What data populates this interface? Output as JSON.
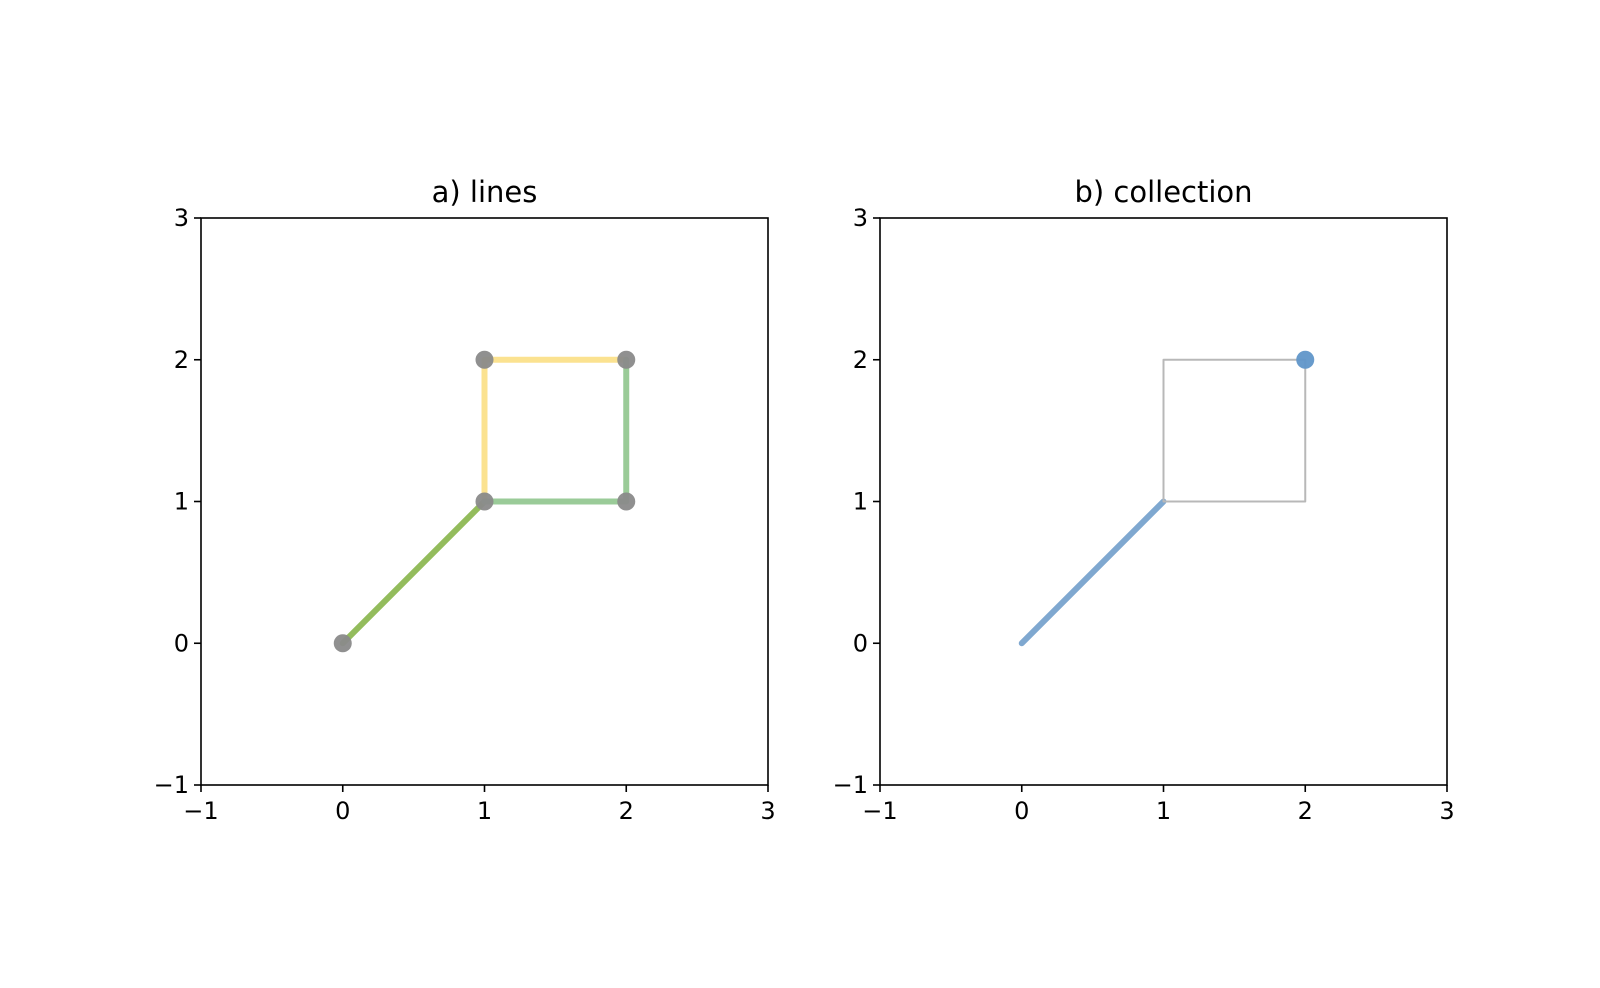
{
  "chart_data": [
    {
      "type": "line",
      "title": "a) lines",
      "xlim": [
        -1,
        3
      ],
      "ylim": [
        -1,
        3
      ],
      "xticks": [
        {
          "value": -1,
          "label": "−1"
        },
        0,
        1,
        2,
        3
      ],
      "yticks": [
        {
          "value": -1,
          "label": "−1"
        },
        0,
        1,
        2,
        3
      ],
      "series": [
        {
          "style": "line",
          "color": "#93bc5c",
          "width": 6,
          "x": [
            0,
            1
          ],
          "values": [
            0,
            1
          ]
        },
        {
          "style": "line",
          "color": "#fbe290",
          "width": 6,
          "x": [
            1,
            1,
            2
          ],
          "values": [
            1,
            2,
            2
          ]
        },
        {
          "style": "line",
          "color": "#9acb98",
          "width": 6,
          "x": [
            2,
            2,
            1
          ],
          "values": [
            2,
            1,
            1
          ]
        },
        {
          "style": "scatter",
          "color": "#8a8a8a",
          "x": [
            0,
            1,
            1,
            2,
            2
          ],
          "values": [
            0,
            1,
            2,
            2,
            1
          ]
        }
      ]
    },
    {
      "type": "line",
      "title": "b) collection",
      "xlim": [
        -1,
        3
      ],
      "ylim": [
        -1,
        3
      ],
      "xticks": [
        {
          "value": -1,
          "label": "−1"
        },
        0,
        1,
        2,
        3
      ],
      "yticks": [
        {
          "value": -1,
          "label": "−1"
        },
        0,
        1,
        2,
        3
      ],
      "series": [
        {
          "style": "line",
          "color": "#7fa8d0",
          "width": 6,
          "x": [
            0,
            1
          ],
          "values": [
            0,
            1
          ]
        },
        {
          "style": "line",
          "color": "#b8b8b8",
          "width": 2,
          "x": [
            1,
            1,
            2,
            2,
            1
          ],
          "values": [
            1,
            2,
            2,
            1,
            1
          ]
        },
        {
          "style": "scatter",
          "color": "#6096c9",
          "x": [
            2
          ],
          "values": [
            2
          ]
        }
      ]
    }
  ]
}
